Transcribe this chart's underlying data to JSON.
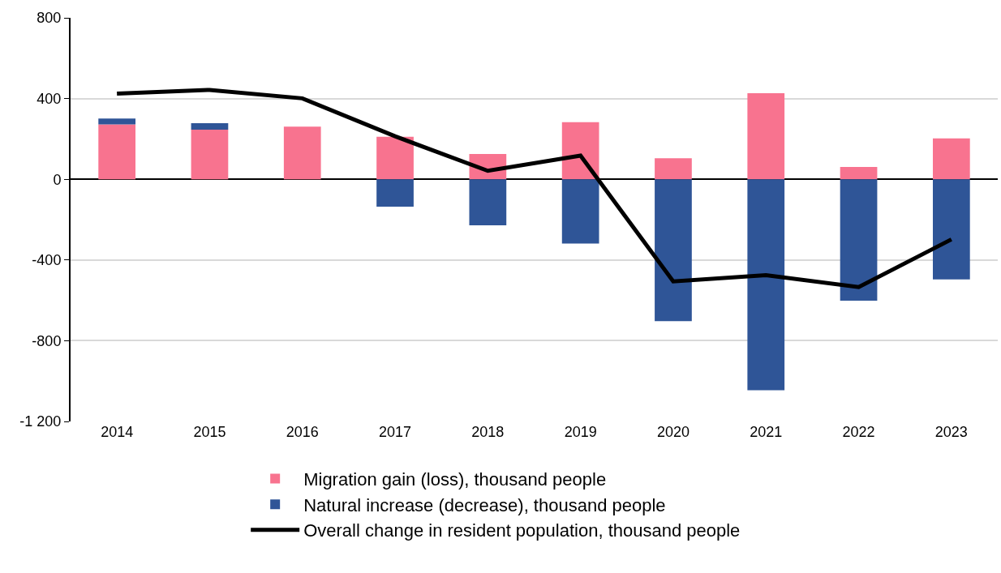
{
  "chart_data": {
    "type": "bar",
    "stacked": true,
    "categories": [
      "2014",
      "2015",
      "2016",
      "2017",
      "2018",
      "2019",
      "2020",
      "2021",
      "2022",
      "2023"
    ],
    "series": [
      {
        "name": "Migration gain (loss), thousand people",
        "color": "#f8738f",
        "values": [
          272,
          246,
          261,
          211,
          125,
          283,
          104,
          427,
          61,
          203
        ]
      },
      {
        "name": "Natural increase (decrease), thousand people",
        "color": "#2f5597",
        "values": [
          29,
          32,
          0,
          -136,
          -228,
          -318,
          -703,
          -1045,
          -602,
          -496
        ]
      },
      {
        "name": "Overall change in resident population, thousand people",
        "type": "line",
        "color": "#000000",
        "values": [
          424,
          443,
          401,
          213,
          42,
          117,
          -506,
          -475,
          -534,
          -298
        ]
      }
    ],
    "ylim": [
      -1200,
      800
    ],
    "yticks": [
      {
        "value": -1200,
        "label": "-1 200"
      },
      -800,
      -400,
      0,
      400,
      800
    ],
    "grid": "y",
    "legend": "bottom",
    "marker": "none",
    "line_style": "solid"
  }
}
